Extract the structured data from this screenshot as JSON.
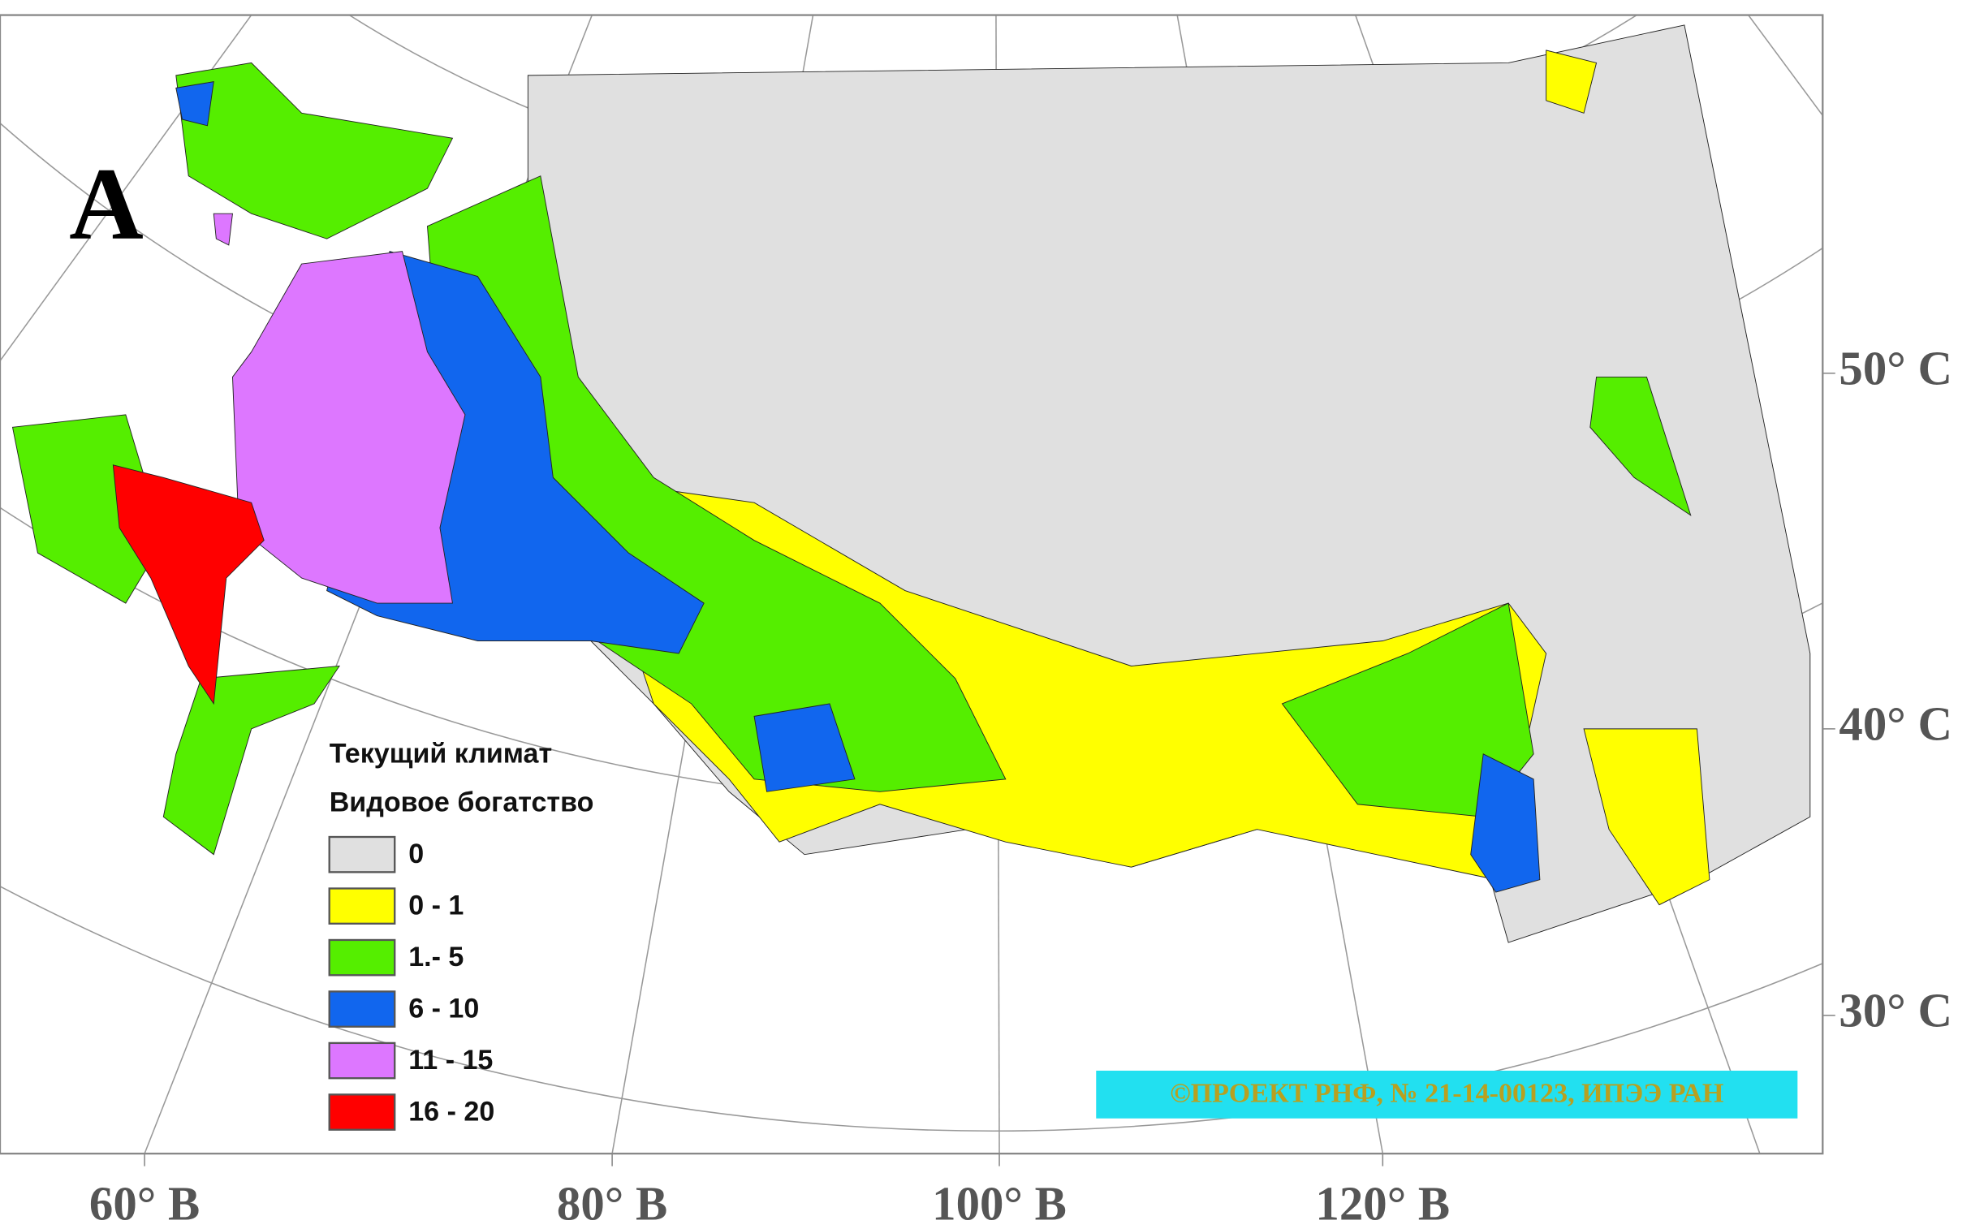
{
  "panel_label": "A",
  "legend": {
    "title": "Текущий климат",
    "subtitle": "Видовое богатство",
    "items": [
      {
        "label": "0",
        "color": "#e0e0e0"
      },
      {
        "label": "0 - 1",
        "color": "#ffff00"
      },
      {
        "label": "1.- 5",
        "color": "#55ee00"
      },
      {
        "label": "6 - 10",
        "color": "#1166ee"
      },
      {
        "label": "11 - 15",
        "color": "#dd77ff"
      },
      {
        "label": "16 - 20",
        "color": "#ff0000"
      }
    ]
  },
  "latitude_labels": [
    "50° С",
    "40° С",
    "30° С"
  ],
  "longitude_labels": [
    "60° В",
    "80° В",
    "100° В",
    "120° В"
  ],
  "credit": "©ПРОЕКТ РНФ, № 21-14-00123, ИПЭЭ РАН"
}
